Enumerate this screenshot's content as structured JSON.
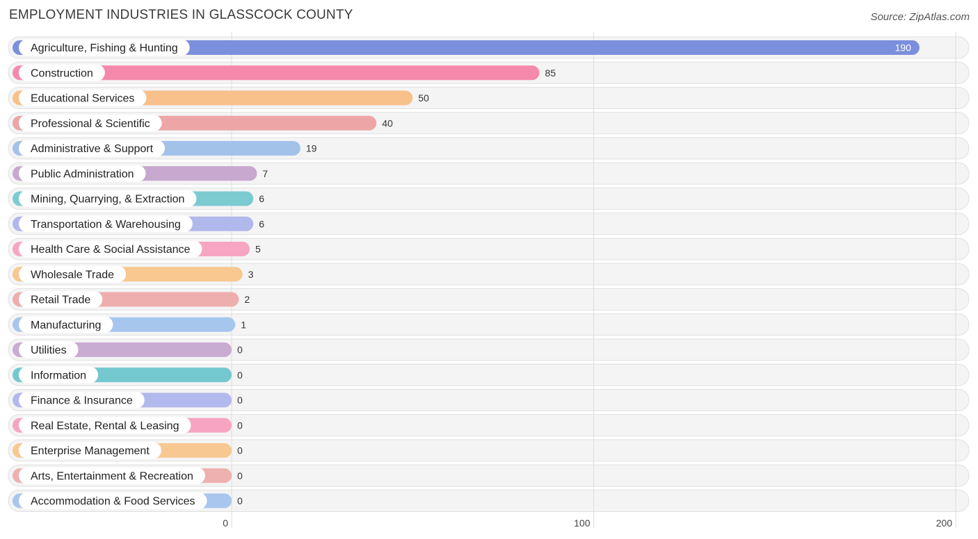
{
  "header": {
    "title": "EMPLOYMENT INDUSTRIES IN GLASSCOCK COUNTY",
    "source": "Source: ZipAtlas.com"
  },
  "chart_data": {
    "type": "bar",
    "orientation": "horizontal",
    "categories": [
      "Agriculture, Fishing & Hunting",
      "Construction",
      "Educational Services",
      "Professional & Scientific",
      "Administrative & Support",
      "Public Administration",
      "Mining, Quarrying, & Extraction",
      "Transportation & Warehousing",
      "Health Care & Social Assistance",
      "Wholesale Trade",
      "Retail Trade",
      "Manufacturing",
      "Utilities",
      "Information",
      "Finance & Insurance",
      "Real Estate, Rental & Leasing",
      "Enterprise Management",
      "Arts, Entertainment & Recreation",
      "Accommodation & Food Services"
    ],
    "values": [
      190,
      85,
      50,
      40,
      19,
      7,
      6,
      6,
      5,
      3,
      2,
      1,
      0,
      0,
      0,
      0,
      0,
      0,
      0
    ],
    "colors": [
      "#7b8fdc",
      "#f589ac",
      "#f8c08b",
      "#eda5a5",
      "#a2c2ea",
      "#c8a8cf",
      "#7ccbd0",
      "#b0b8ec",
      "#f6a6c3",
      "#f8c890",
      "#eeaeae",
      "#a6c6ee",
      "#c9acd2",
      "#74c8cf",
      "#b1b9ed",
      "#f6a4c1",
      "#f8c892",
      "#efb0b0",
      "#a8c6ee"
    ],
    "xticks": [
      0,
      100,
      200
    ],
    "xlim": [
      0,
      200
    ],
    "grid": true
  }
}
